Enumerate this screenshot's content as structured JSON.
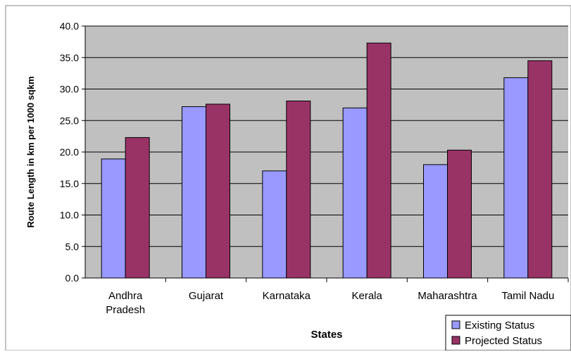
{
  "chart_data": {
    "type": "bar",
    "xlabel": "States",
    "ylabel": "Route Length in km per 1000 sqkm",
    "categories": [
      [
        "Andhra",
        "Pradesh"
      ],
      [
        "Gujarat"
      ],
      [
        "Karnataka"
      ],
      [
        "Kerala"
      ],
      [
        "Maharashtra"
      ],
      [
        "Tamil Nadu"
      ]
    ],
    "series": [
      {
        "name": "Existing Status",
        "color": "#9999FF",
        "values": [
          18.9,
          27.2,
          17.0,
          27.0,
          18.0,
          31.8
        ]
      },
      {
        "name": "Projected Status",
        "color": "#993366",
        "values": [
          22.3,
          27.6,
          28.1,
          37.3,
          20.3,
          34.5
        ]
      }
    ],
    "ylim": [
      0,
      40
    ],
    "yticks": [
      "0.0",
      "5.0",
      "10.0",
      "15.0",
      "20.0",
      "25.0",
      "30.0",
      "35.0",
      "40.0"
    ],
    "grid": true,
    "plot_background": "#C0C0C0",
    "legend_position": "bottom-right"
  }
}
